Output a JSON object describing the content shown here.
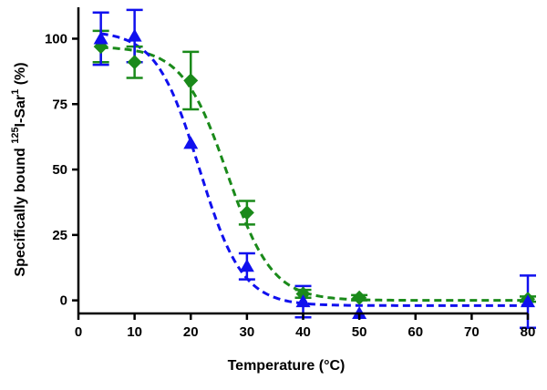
{
  "chart_data": {
    "type": "scatter",
    "title": "",
    "xlabel": "Temperature (°C)",
    "ylabel": {
      "prefix": "Specifically bound ",
      "sup1": "125",
      "middle": "I-Sar",
      "sup2": "1",
      "suffix": " (%)"
    },
    "xlim": [
      0,
      80
    ],
    "ylim": [
      -5,
      112
    ],
    "xticks": [
      "0",
      "10",
      "20",
      "30",
      "40",
      "50",
      "60",
      "70",
      "80"
    ],
    "yticks": [
      "0",
      "25",
      "50",
      "75",
      "100"
    ],
    "grid": false,
    "legend": "none",
    "series": [
      {
        "color": "#1a8a1a",
        "marker": "diamond",
        "points": [
          {
            "x": 4,
            "y": 97,
            "err": 6
          },
          {
            "x": 10,
            "y": 91,
            "err": 6
          },
          {
            "x": 20,
            "y": 84,
            "err": 11
          },
          {
            "x": 30,
            "y": 33.5,
            "err": 4.5
          },
          {
            "x": 40,
            "y": 2.5,
            "err": 1.5
          },
          {
            "x": 50,
            "y": 1,
            "err": 1
          },
          {
            "x": 80,
            "y": 0.5,
            "err": 1
          }
        ],
        "fit": {
          "top": 97,
          "bottom": 0,
          "x50": 26.5,
          "slope": 0.25
        }
      },
      {
        "color": "#1010ee",
        "marker": "triangle",
        "points": [
          {
            "x": 4,
            "y": 100,
            "err": 10
          },
          {
            "x": 10,
            "y": 101,
            "err": 10
          },
          {
            "x": 20,
            "y": 60,
            "err": 0
          },
          {
            "x": 30,
            "y": 13,
            "err": 5
          },
          {
            "x": 40,
            "y": -0.5,
            "err": 6
          },
          {
            "x": 50,
            "y": -5,
            "err": 0
          },
          {
            "x": 80,
            "y": -0.5,
            "err": 10
          }
        ],
        "fit": {
          "top": 103,
          "bottom": -2,
          "x50": 21.5,
          "slope": 0.26
        }
      }
    ]
  }
}
